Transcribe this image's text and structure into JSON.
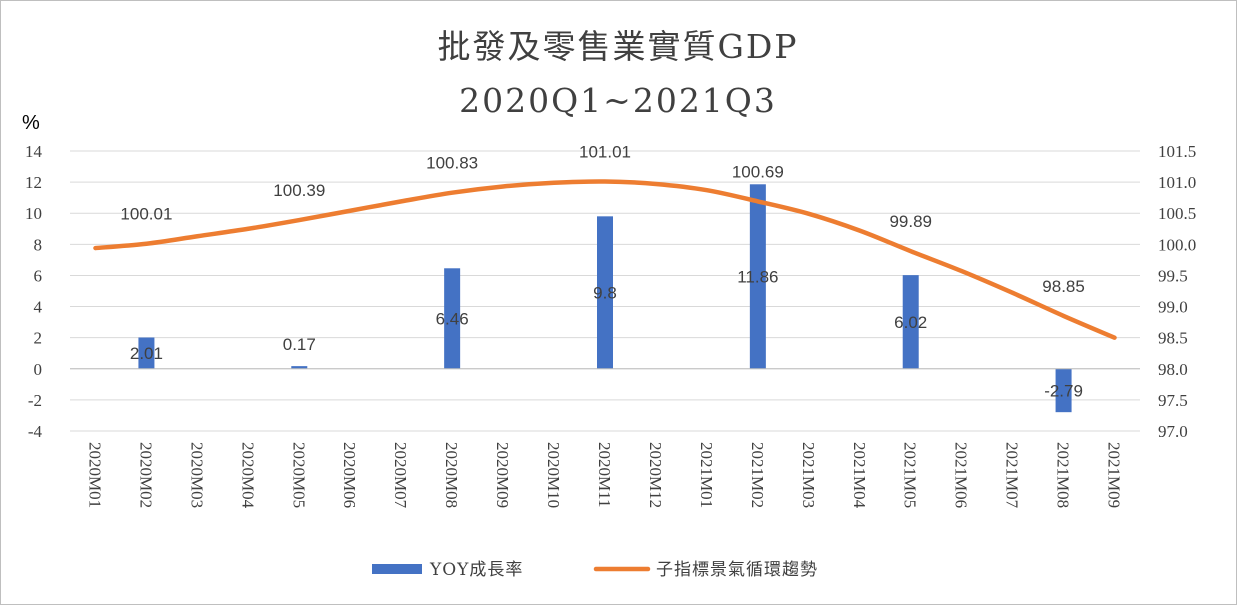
{
  "chart_data": {
    "type": "bar-line-combo",
    "title_line1": "批發及零售業實質GDP",
    "title_line2": "2020Q1~2021Q3",
    "y_left_unit": "%",
    "categories": [
      "2020M01",
      "2020M02",
      "2020M03",
      "2020M04",
      "2020M05",
      "2020M06",
      "2020M07",
      "2020M08",
      "2020M09",
      "2020M10",
      "2020M11",
      "2020M12",
      "2021M01",
      "2021M02",
      "2021M03",
      "2021M04",
      "2021M05",
      "2021M06",
      "2021M07",
      "2021M08",
      "2021M09"
    ],
    "y_left": {
      "min": -4,
      "max": 14,
      "step": 2,
      "ticks": [
        "-4",
        "-2",
        "0",
        "2",
        "4",
        "6",
        "8",
        "10",
        "12",
        "14"
      ]
    },
    "y_right": {
      "min": 97.0,
      "max": 101.5,
      "step": 0.5,
      "ticks": [
        "97.0",
        "97.5",
        "98.0",
        "98.5",
        "99.0",
        "99.5",
        "100.0",
        "100.5",
        "101.0",
        "101.5"
      ]
    },
    "grid": "horizontal",
    "legend_position": "bottom",
    "series": [
      {
        "name": "YOY成長率",
        "type": "bar",
        "axis": "left",
        "color": "#4472C4",
        "values": [
          null,
          2.01,
          null,
          null,
          0.17,
          null,
          null,
          6.46,
          null,
          null,
          9.8,
          null,
          null,
          11.86,
          null,
          null,
          6.02,
          null,
          null,
          -2.79,
          null
        ],
        "labels": [
          null,
          "2.01",
          null,
          null,
          "0.17",
          null,
          null,
          "6.46",
          null,
          null,
          "9.8",
          null,
          null,
          "11.86",
          null,
          null,
          "6.02",
          null,
          null,
          "-2.79",
          null
        ]
      },
      {
        "name": "子指標景氣循環趨勢",
        "type": "line",
        "axis": "right",
        "color": "#ED7D31",
        "values": [
          99.94,
          100.01,
          100.13,
          100.25,
          100.39,
          100.54,
          100.69,
          100.83,
          100.93,
          100.99,
          101.01,
          100.97,
          100.87,
          100.69,
          100.49,
          100.22,
          99.89,
          99.57,
          99.22,
          98.85,
          98.5
        ],
        "labels": [
          null,
          "100.01",
          null,
          null,
          "100.39",
          null,
          null,
          "100.83",
          null,
          null,
          "101.01",
          null,
          null,
          "100.69",
          null,
          null,
          "99.89",
          null,
          null,
          "98.85",
          null
        ]
      }
    ]
  }
}
